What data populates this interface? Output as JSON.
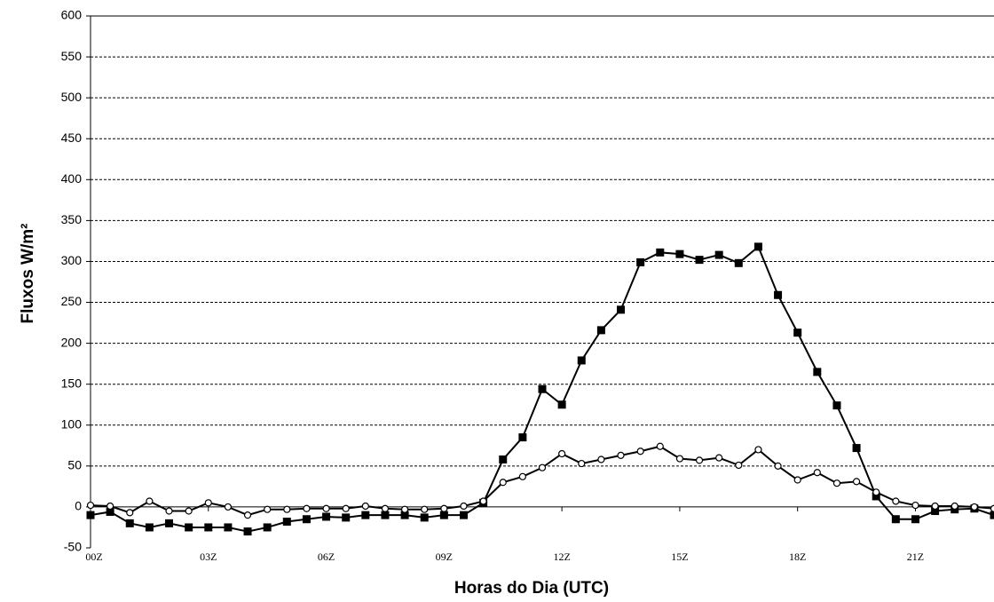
{
  "chart_data": {
    "type": "line",
    "ylabel": "Fluxos W/m²",
    "xlabel": "Horas do Dia (UTC)",
    "x": [
      0,
      0.5,
      1,
      1.5,
      2,
      2.5,
      3,
      3.5,
      4,
      4.5,
      5,
      5.5,
      6,
      6.5,
      7,
      7.5,
      8,
      8.5,
      9,
      9.5,
      10,
      10.5,
      11,
      11.5,
      12,
      12.5,
      13,
      13.5,
      14,
      14.5,
      15,
      15.5,
      16,
      16.5,
      17,
      17.5,
      18,
      18.5,
      19,
      19.5,
      20,
      20.5,
      21,
      21.5,
      22,
      22.5,
      23
    ],
    "series": [
      {
        "color": "#000000",
        "marker": "square",
        "values": [
          -10,
          -6,
          -20,
          -25,
          -20,
          -25,
          -25,
          -25,
          -30,
          -25,
          -18,
          -15,
          -12,
          -13,
          -10,
          -10,
          -10,
          -13,
          -10,
          -10,
          5,
          58,
          85,
          144,
          125,
          179,
          216,
          241,
          299,
          311,
          309,
          302,
          308,
          298,
          318,
          259,
          213,
          165,
          124,
          72,
          13,
          -15,
          -15,
          -5,
          -3,
          -2,
          -10
        ]
      },
      {
        "color": "#000000",
        "marker": "circle",
        "values": [
          2,
          1,
          -7,
          7,
          -5,
          -5,
          5,
          0,
          -10,
          -3,
          -3,
          -2,
          -2,
          -2,
          1,
          -2,
          -3,
          -3,
          -2,
          1,
          7,
          30,
          37,
          48,
          65,
          53,
          58,
          63,
          68,
          74,
          59,
          57,
          60,
          51,
          70,
          50,
          33,
          42,
          29,
          31,
          18,
          7,
          2,
          1,
          1,
          0,
          -2
        ]
      }
    ],
    "xlim": [
      0,
      23
    ],
    "xticks": [
      {
        "value": 0,
        "label": "00Z"
      },
      {
        "value": 3,
        "label": "03Z"
      },
      {
        "value": 6,
        "label": "06Z"
      },
      {
        "value": 9,
        "label": "09Z"
      },
      {
        "value": 12,
        "label": "12Z"
      },
      {
        "value": 15,
        "label": "15Z"
      },
      {
        "value": 18,
        "label": "18Z"
      },
      {
        "value": 21,
        "label": "21Z"
      }
    ],
    "ylim": [
      -50,
      600
    ],
    "yticks": [
      -50,
      0,
      50,
      100,
      150,
      200,
      250,
      300,
      350,
      400,
      450,
      500,
      550,
      600
    ],
    "grid": true
  }
}
